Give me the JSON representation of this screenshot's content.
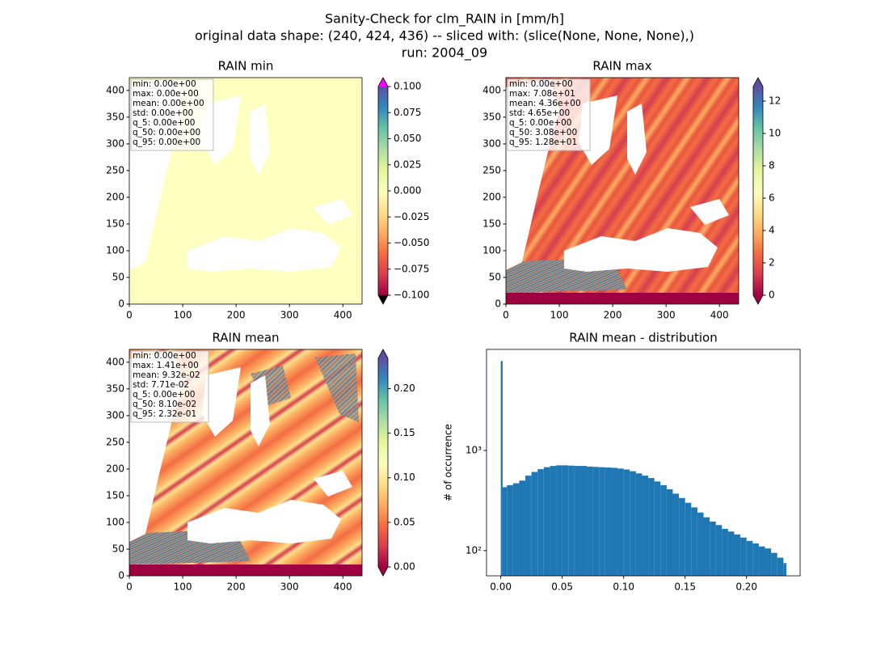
{
  "title_lines": [
    "Sanity-Check for clm_RAIN in [mm/h]",
    "original data shape: (240, 424, 436) -- sliced with: (slice(None, None, None),)",
    "run: 2004_09"
  ],
  "chart_data": [
    {
      "type": "heatmap",
      "title": "RAIN min",
      "xlim": [
        0,
        436
      ],
      "xticks": [
        0,
        100,
        200,
        300,
        400
      ],
      "ylim": [
        0,
        424
      ],
      "yticks": [
        0,
        50,
        100,
        150,
        200,
        250,
        300,
        350,
        400
      ],
      "stats": [
        "min: 0.00e+00",
        "max: 0.00e+00",
        "mean: 0.00e+00",
        "std: 0.00e+00",
        "q_5: 0.00e+00",
        "q_50: 0.00e+00",
        "q_95: 0.00e+00"
      ],
      "colorbar": {
        "lim": [
          -0.1,
          0.1
        ],
        "over_color": "#ff00ff",
        "under_color": "#000000",
        "ticks": [
          {
            "value": -0.1,
            "label": "−0.100"
          },
          {
            "value": -0.075,
            "label": "−0.075"
          },
          {
            "value": -0.05,
            "label": "−0.050"
          },
          {
            "value": -0.025,
            "label": "−0.025"
          },
          {
            "value": 0,
            "label": "0.000"
          },
          {
            "value": 0.025,
            "label": "0.025"
          },
          {
            "value": 0.05,
            "label": "0.050"
          },
          {
            "value": 0.075,
            "label": "0.075"
          },
          {
            "value": 0.1,
            "label": "0.100"
          }
        ]
      }
    },
    {
      "type": "heatmap",
      "title": "RAIN max",
      "xlim": [
        0,
        436
      ],
      "xticks": [
        0,
        100,
        200,
        300,
        400
      ],
      "ylim": [
        0,
        424
      ],
      "yticks": [
        0,
        50,
        100,
        150,
        200,
        250,
        300,
        350,
        400
      ],
      "stats": [
        "min: 0.00e+00",
        "max: 7.08e+01",
        "mean: 4.36e+00",
        "std: 4.65e+00",
        "q_5: 0.00e+00",
        "q_50: 3.08e+00",
        "q_95: 1.28e+01"
      ],
      "colorbar": {
        "lim": [
          0,
          12.9
        ],
        "over_color": "#5e4fa2",
        "under_color": "#9e0142",
        "ticks": [
          0,
          2,
          4,
          6,
          8,
          10,
          12
        ]
      }
    },
    {
      "type": "heatmap",
      "title": "RAIN mean",
      "xlim": [
        0,
        436
      ],
      "xticks": [
        0,
        100,
        200,
        300,
        400
      ],
      "ylim": [
        0,
        424
      ],
      "yticks": [
        0,
        50,
        100,
        150,
        200,
        250,
        300,
        350,
        400
      ],
      "stats": [
        "min: 0.00e+00",
        "max: 1.41e+00",
        "mean: 9.32e-02",
        "std: 7.71e-02",
        "q_5: 0.00e+00",
        "q_50: 8.10e-02",
        "q_95: 2.32e-01"
      ],
      "colorbar": {
        "lim": [
          0,
          0.234
        ],
        "over_color": "#5e4fa2",
        "under_color": "#9e0142",
        "ticks": [
          {
            "value": 0,
            "label": "0.00"
          },
          0.05,
          {
            "value": 0.1,
            "label": "0.10"
          },
          0.15,
          {
            "value": 0.2,
            "label": "0.20"
          }
        ]
      }
    },
    {
      "type": "histogram",
      "title": "RAIN mean - distribution",
      "ylabel": "# of occurrence",
      "color": "#1f77b4",
      "log_y": true,
      "bins": [
        0,
        0.0015,
        0.005,
        0.01,
        0.015,
        0.02,
        0.025,
        0.03,
        0.035,
        0.04,
        0.045,
        0.05,
        0.055,
        0.06,
        0.065,
        0.07,
        0.075,
        0.08,
        0.085,
        0.09,
        0.095,
        0.1,
        0.105,
        0.11,
        0.115,
        0.12,
        0.125,
        0.13,
        0.135,
        0.14,
        0.145,
        0.15,
        0.155,
        0.16,
        0.165,
        0.17,
        0.175,
        0.18,
        0.185,
        0.19,
        0.195,
        0.2,
        0.205,
        0.21,
        0.215,
        0.22,
        0.225,
        0.23,
        0.2325
      ],
      "values": [
        7800,
        430,
        450,
        470,
        500,
        560,
        610,
        650,
        680,
        700,
        710,
        710,
        705,
        700,
        700,
        690,
        685,
        680,
        675,
        670,
        660,
        645,
        620,
        590,
        560,
        530,
        490,
        450,
        410,
        370,
        335,
        300,
        270,
        240,
        215,
        195,
        180,
        165,
        155,
        145,
        135,
        125,
        118,
        110,
        105,
        95,
        85,
        75
      ],
      "xlim": [
        -0.0116,
        0.2436
      ],
      "xticks": [
        {
          "value": 0,
          "label": "0.00"
        },
        0.05,
        {
          "value": 0.1,
          "label": "0.10"
        },
        0.15,
        {
          "value": 0.2,
          "label": "0.20"
        }
      ],
      "ylim": [
        56,
        10200
      ],
      "yticks": [
        {
          "value": 100,
          "label": "10²"
        },
        {
          "value": 1000,
          "label": "10³"
        }
      ]
    }
  ]
}
